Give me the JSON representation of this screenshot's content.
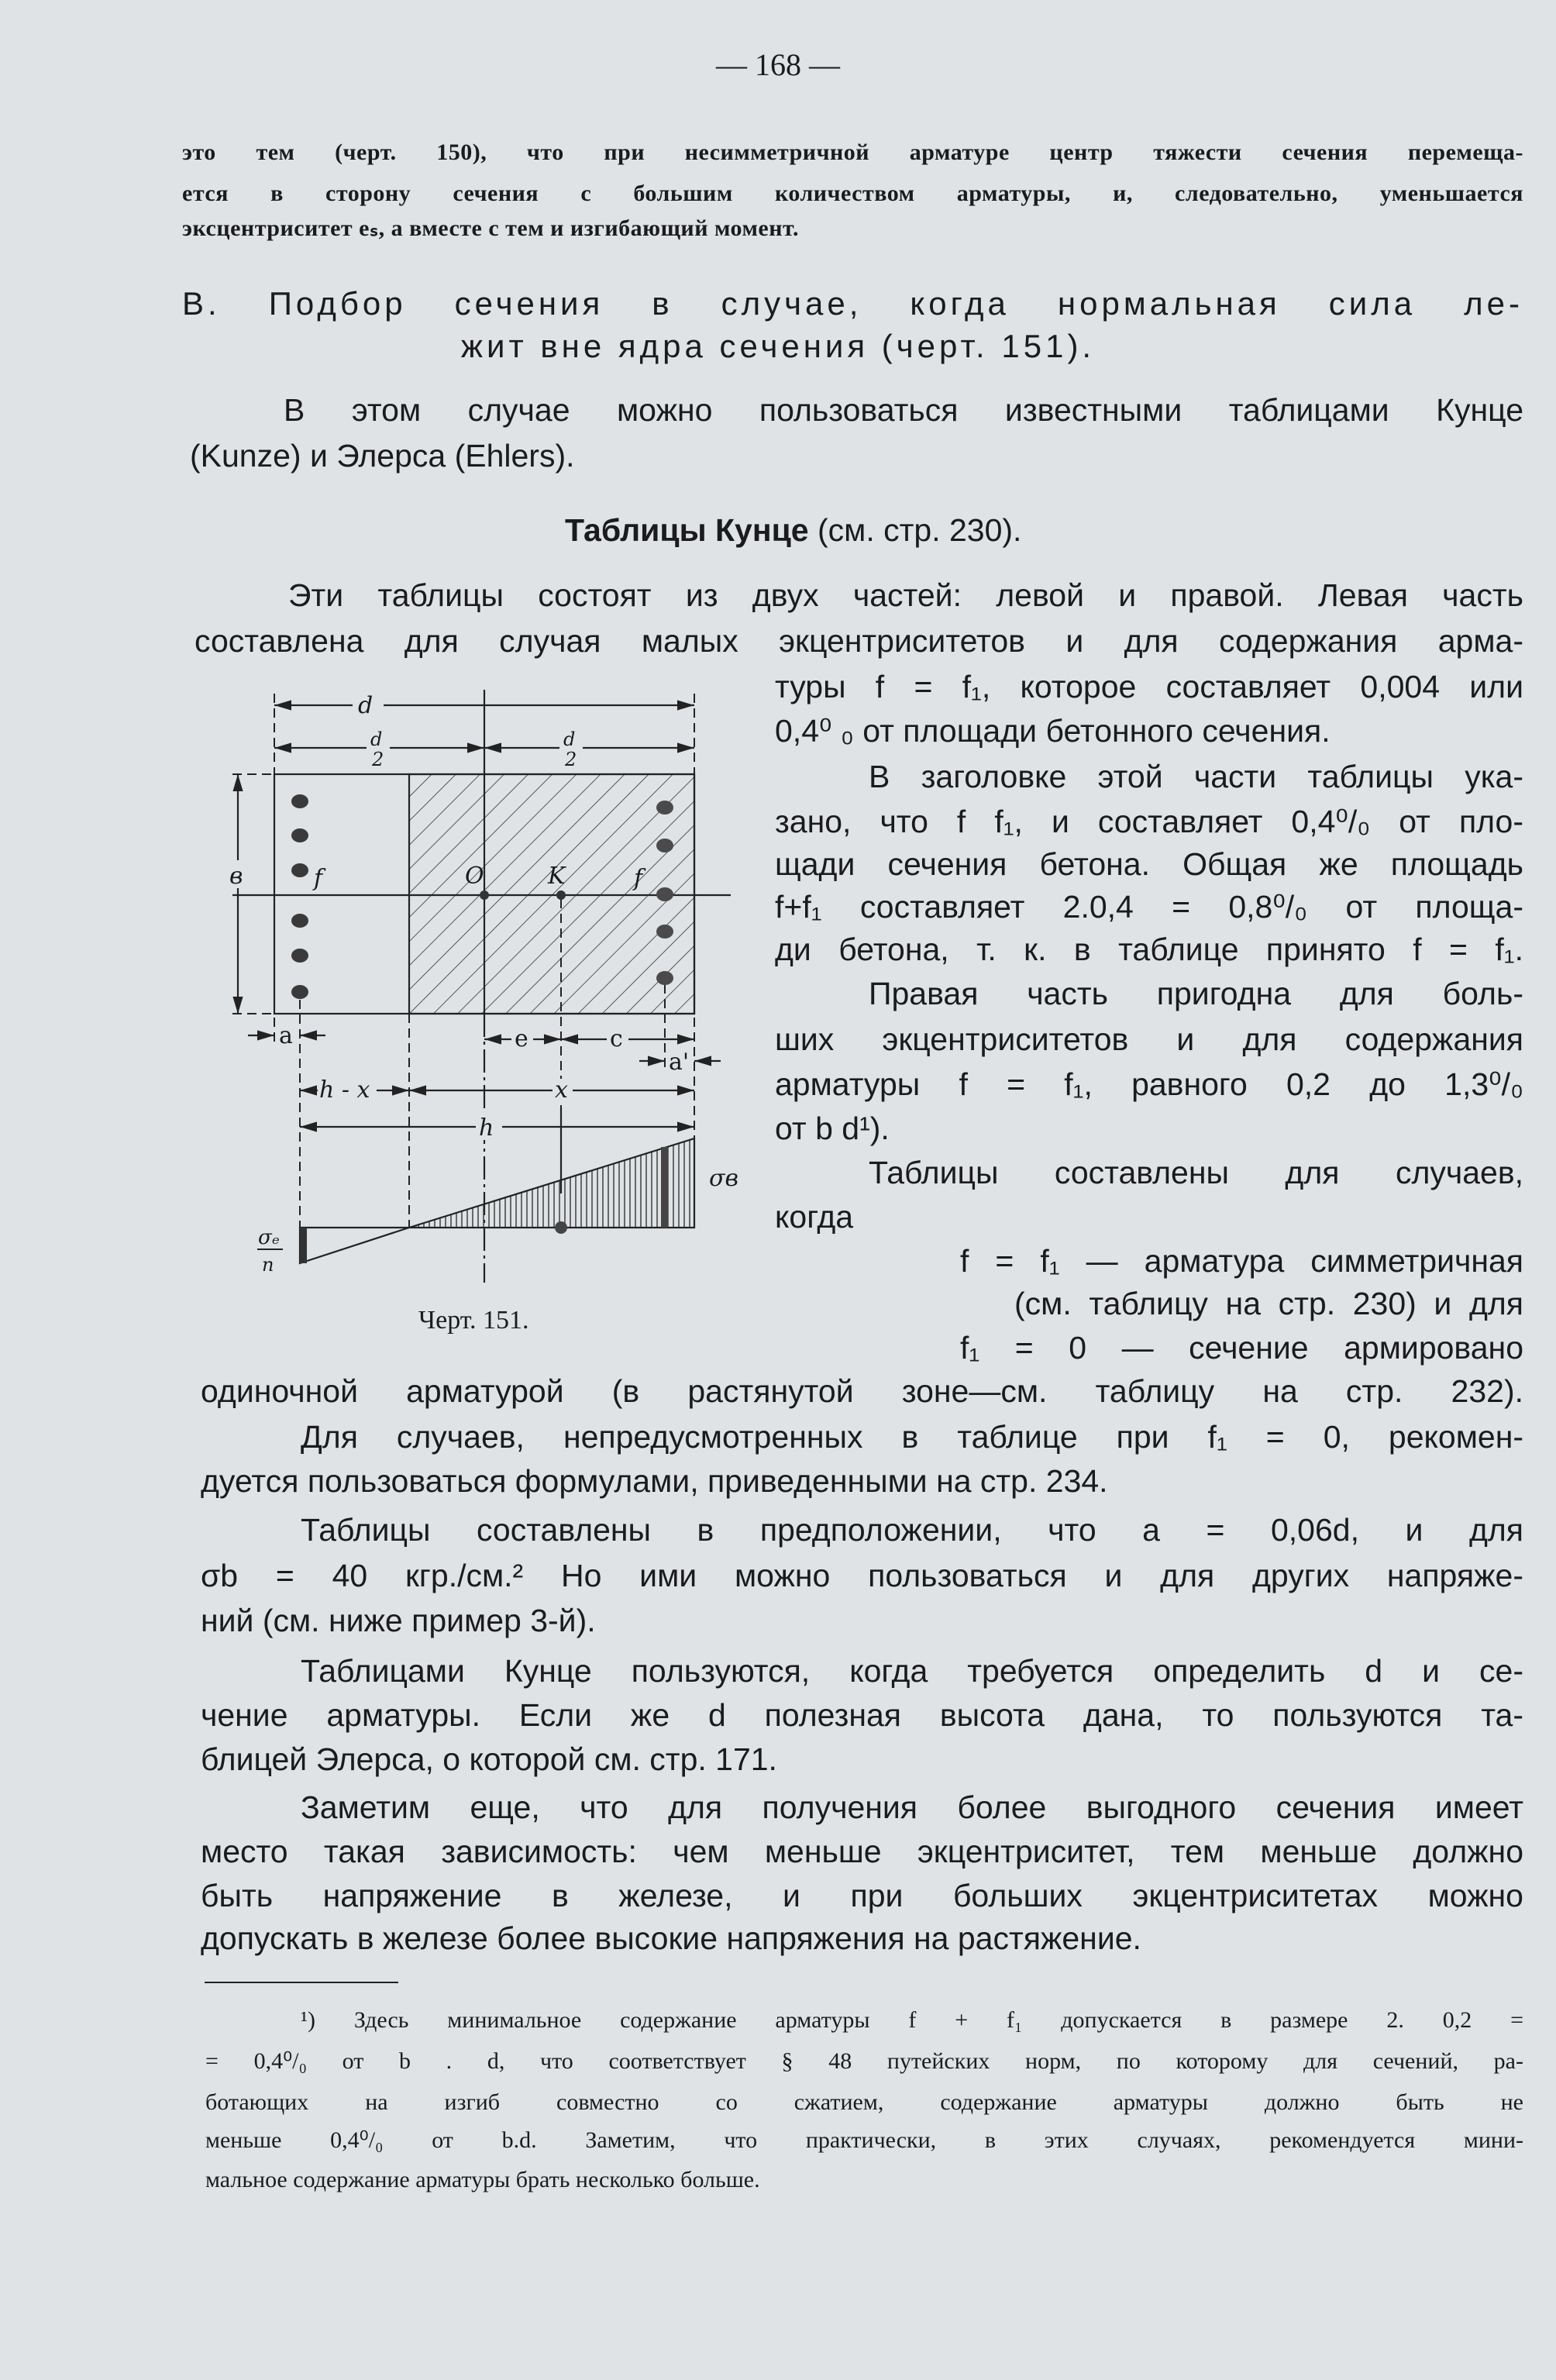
{
  "page_number": "— 168 —",
  "intro_lines": [
    "это тем (черт. 150), что при несимметричной арматуре центр тяжести сечения перемеща-",
    "ется в сторону сечения с большим количеством арматуры, и, следовательно, уменьшается",
    "эксцентриситет eₛ, а вместе с тем и изгибающий момент."
  ],
  "section_heading": [
    "В. Подбор сечения в случае, когда нормальная сила ле-",
    "жит вне ядра сечения (черт. 151)."
  ],
  "para1": [
    "В этом случае можно пользоваться известными таблицами Кунце",
    "(Kunze) и Элерса (Ehlers)."
  ],
  "subheading": {
    "bold": "Таблицы Кунце",
    "rest": "(см. стр. 230)."
  },
  "para2": [
    "Эти таблицы состоят из двух частей: левой и правой. Левая часть",
    "составлена для случая малых экцентриситетов и для содержания арма-"
  ],
  "right_column": [
    "туры f = f₁, которое составляет 0,004 или",
    "0,4⁰ ₀ от площади бетонного сечения.",
    "В заголовке этой части таблицы ука-",
    "зано, что f  f₁, и составляет 0,4⁰/₀ от пло-",
    "щади сечения бетона. Общая же площадь",
    "f+f₁ составляет 2.0,4 = 0,8⁰/₀ от площа-",
    "ди бетона, т. к. в таблице принято f = f₁.",
    "Правая часть пригодна для боль-",
    "ших экцентриситетов и для содержания",
    "арматуры f = f₁, равного 0,2 до 1,3⁰/₀",
    "от b d¹).",
    "Таблицы составлены для случаев,",
    "когда",
    "f = f₁ — арматура симметричная",
    "(см. таблицу на стр. 230) и для",
    "f₁ = 0 — сечение    армировано"
  ],
  "figure": {
    "caption": "Черт. 151.",
    "labels": {
      "d": "d",
      "d_half": "d",
      "two": "2",
      "b": "в",
      "f_left": "f",
      "O": "O",
      "K": "K",
      "f_right": "f",
      "a": "a",
      "e": "e",
      "c": "c",
      "a_prime": "a'",
      "h_minus_x": "h - x",
      "x": "x",
      "h": "h",
      "sigma_b": "σв",
      "sigma_e": "σₑ",
      "n": "n"
    }
  },
  "body_lines": [
    "одиночной арматурой (в растянутой зоне—см. таблицу на стр. 232).",
    "Для случаев, непредусмотренных в таблице при f₁ = 0, рекомен-",
    "дуется пользоваться формулами, приведенными на стр. 234.",
    "Таблицы   составлены   в предположении,   что   a = 0,06d,  и  для",
    "σb = 40 кгр./см.² Но ими можно пользоваться и для других напряже-",
    "ний (см. ниже пример 3-й).",
    "Таблицами Кунце пользуются, когда требуется определить d и се-",
    "чение арматуры. Если же d полезная высота дана, то пользуются та-",
    "блицей Элерса, о которой см. стр. 171.",
    "Заметим еще, что для получения более выгодного сечения имеет",
    "место такая зависимость: чем меньше экцентриситет, тем меньше должно",
    "быть напряжение в железе, и при больших экцентриситетах можно",
    "допускать в железе более высокие напряжения на растяжение."
  ],
  "footnote_lines": [
    "¹) Здесь минимальное содержание арматуры f + f₁ допускается в размере 2. 0,2 =",
    "= 0,4⁰/₀ от b . d, что соответствует § 48 путейских норм, по которому для сечений, ра-",
    "ботающих на изгиб совместно со сжатием, содержание арматуры должно быть не",
    "меньше 0,4⁰/₀ от b.d. Заметим, что практически, в этих случаях, рекомендуется мини-",
    "мальное содержание арматуры брать несколько больше."
  ]
}
